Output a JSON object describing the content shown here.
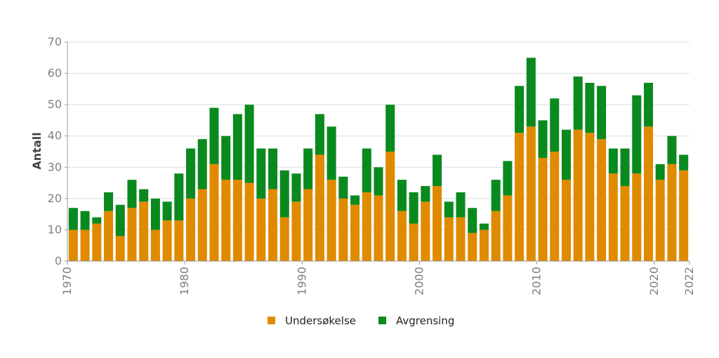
{
  "chart_data": {
    "type": "bar",
    "stacked": true,
    "ylabel": "Antall",
    "xlabel": "",
    "ylim": [
      0,
      70
    ],
    "yticks": [
      0,
      10,
      20,
      30,
      40,
      50,
      60,
      70
    ],
    "xticks": [
      1970,
      1980,
      1990,
      2000,
      2010,
      2020,
      2022
    ],
    "grid": true,
    "legend_position": "bottom",
    "categories": [
      1970,
      1971,
      1972,
      1973,
      1974,
      1975,
      1976,
      1977,
      1978,
      1979,
      1980,
      1981,
      1982,
      1983,
      1984,
      1985,
      1986,
      1987,
      1988,
      1989,
      1990,
      1991,
      1992,
      1993,
      1994,
      1995,
      1996,
      1997,
      1998,
      1999,
      2000,
      2001,
      2002,
      2003,
      2004,
      2005,
      2006,
      2007,
      2008,
      2009,
      2010,
      2011,
      2012,
      2013,
      2014,
      2015,
      2016,
      2017,
      2018,
      2019,
      2020,
      2021,
      2022
    ],
    "series": [
      {
        "name": "Undersøkelse",
        "color": "#e08a00",
        "values": [
          10,
          10,
          12,
          16,
          8,
          17,
          19,
          10,
          13,
          13,
          20,
          23,
          31,
          26,
          26,
          25,
          20,
          23,
          14,
          19,
          23,
          34,
          26,
          20,
          18,
          22,
          21,
          35,
          16,
          12,
          19,
          24,
          14,
          14,
          9,
          10,
          16,
          21,
          41,
          43,
          33,
          35,
          26,
          42,
          41,
          39,
          28,
          24,
          28,
          43,
          26,
          31,
          29
        ]
      },
      {
        "name": "Avgrensing",
        "color": "#0a8a1e",
        "values": [
          7,
          6,
          2,
          6,
          10,
          9,
          4,
          10,
          6,
          15,
          16,
          16,
          18,
          14,
          21,
          25,
          16,
          13,
          15,
          9,
          13,
          13,
          17,
          7,
          3,
          14,
          9,
          15,
          10,
          10,
          5,
          10,
          5,
          8,
          8,
          2,
          10,
          11,
          15,
          22,
          12,
          17,
          16,
          17,
          16,
          17,
          8,
          12,
          25,
          14,
          5,
          9,
          5
        ]
      }
    ]
  }
}
